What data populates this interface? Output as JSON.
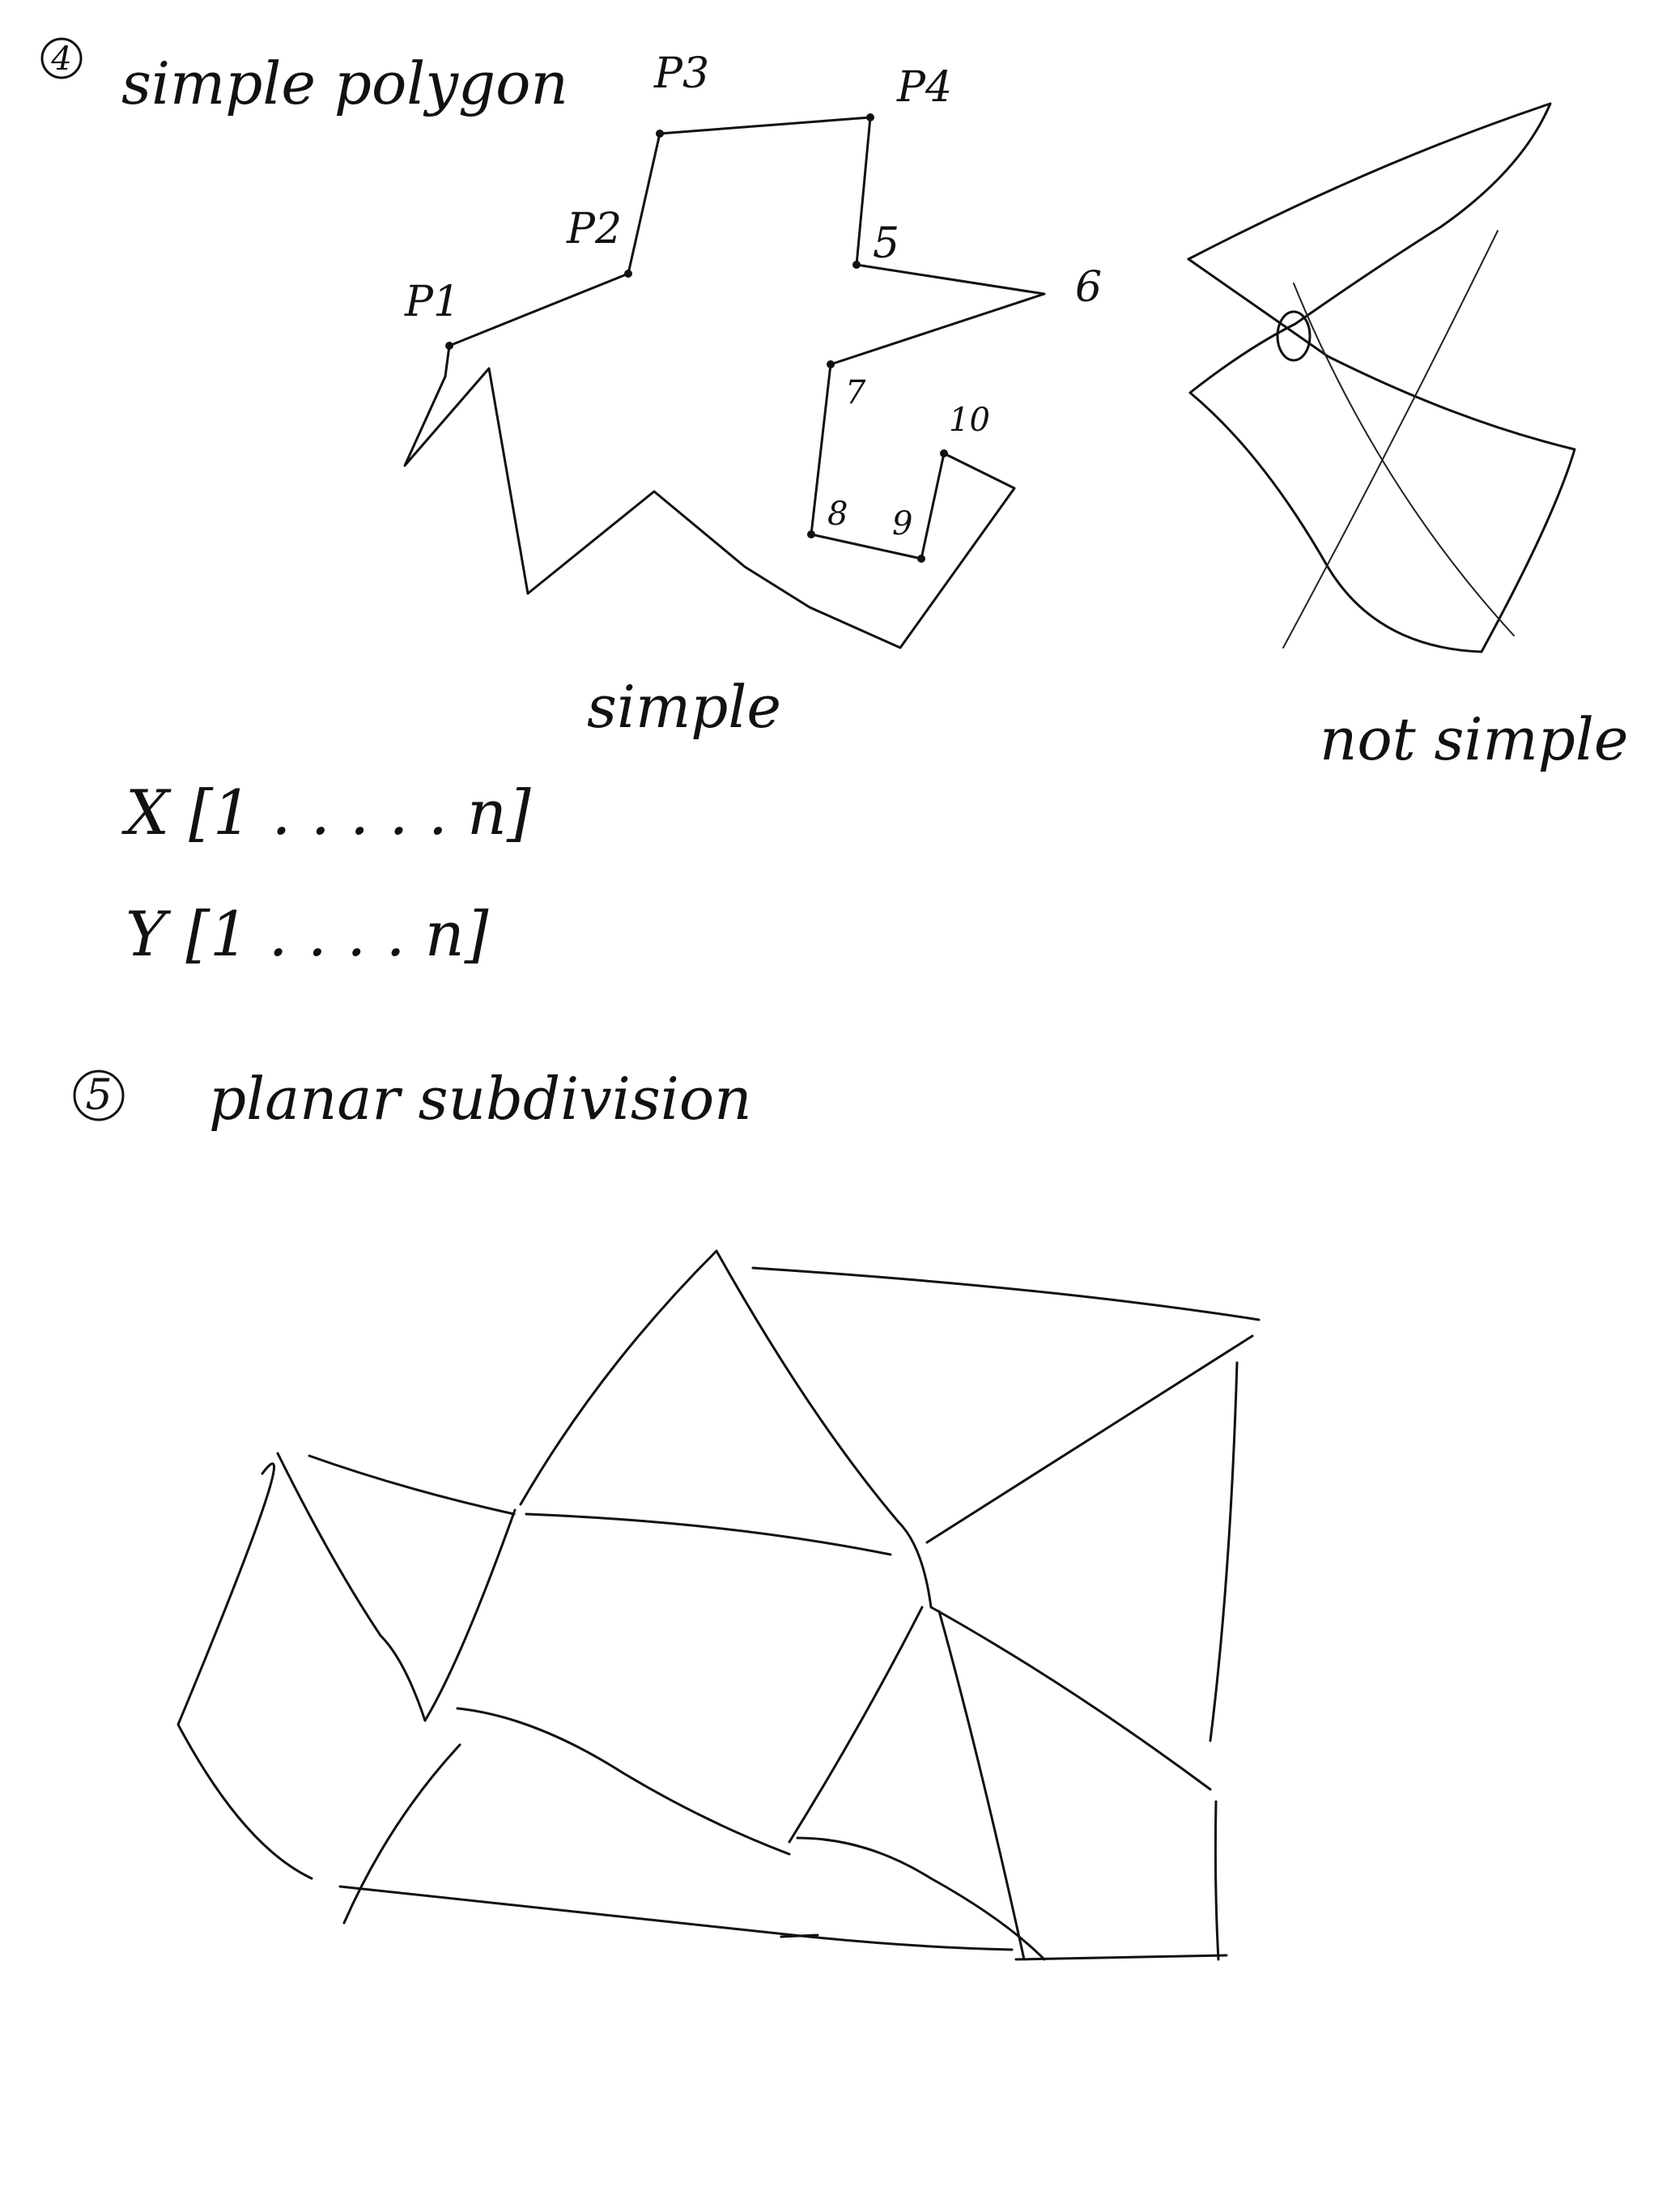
{
  "sections": {
    "simple_polygon": {
      "number": "4",
      "title": "simple polygon",
      "vertex_labels": [
        "P1",
        "P2",
        "P3",
        "P4",
        "5",
        "6",
        "7",
        "8",
        "9",
        "10"
      ],
      "caption_simple": "simple",
      "caption_not_simple": "not simple",
      "arrays": [
        "X [1 . . . . . n]",
        "Y [1 . . . . n]"
      ]
    },
    "planar_subdivision": {
      "number": "5",
      "title": "planar subdivision"
    }
  },
  "colors": {
    "ink": "#111111",
    "background": "#ffffff"
  }
}
